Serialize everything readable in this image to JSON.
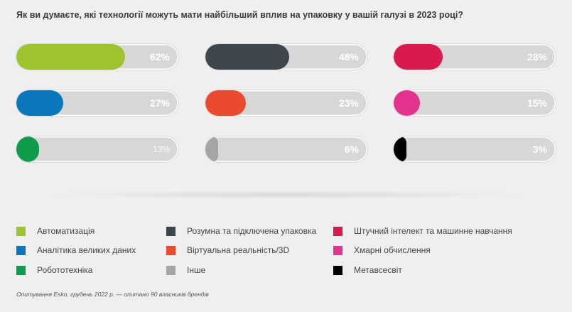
{
  "chart_data": {
    "type": "bar",
    "title": "Як ви думаєте, які технології можуть мати найбільший вплив на упаковку у вашій галузі в 2023 році?",
    "xlim": [
      0,
      100
    ],
    "unit": "%",
    "categories": [
      "Автоматизація",
      "Розумна та підключена упаковка",
      "Штучний інтелект та машинне навчання",
      "Аналітика великих даних",
      "Віртуальна реальність/3D",
      "Хмарні обчислення",
      "Робототехніка",
      "Інше",
      "Метавсесвіт"
    ],
    "values": [
      62,
      48,
      28,
      27,
      23,
      15,
      13,
      6,
      3
    ],
    "labels": [
      "62%",
      "48%",
      "28%",
      "27%",
      "23%",
      "15%",
      "13%",
      "6%",
      "3%"
    ],
    "colors": [
      "#9dc42f",
      "#3d464d",
      "#d81a4d",
      "#0a76bc",
      "#ea4b2e",
      "#e4338e",
      "#0e9c4a",
      "#a4a5a6",
      "#000000"
    ],
    "legend_position": "bottom"
  },
  "footnote": "Опитування Esko, грудень 2022 р. — опитано 90 власників брендів"
}
